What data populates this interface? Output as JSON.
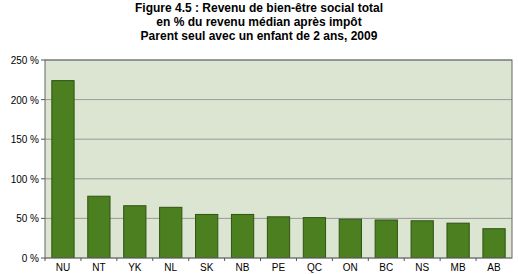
{
  "chart_data": {
    "type": "bar",
    "title": [
      "Figure 4.5 : Revenu de bien-être social total",
      "en % du revenu médian après impôt",
      "Parent seul avec un enfant de 2 ans, 2009"
    ],
    "categories": [
      "NU",
      "NT",
      "YK",
      "NL",
      "SK",
      "NB",
      "PE",
      "QC",
      "ON",
      "BC",
      "NS",
      "MB",
      "AB"
    ],
    "values": [
      224,
      78,
      66,
      64,
      55,
      55,
      52,
      51,
      49,
      48,
      47,
      44,
      37
    ],
    "color": "#4b7f1f",
    "ylim": [
      0,
      250
    ],
    "yticks": [
      {
        "value": 0,
        "label": "0 %"
      },
      {
        "value": 50,
        "label": "50 %"
      },
      {
        "value": 100,
        "label": "100 %"
      },
      {
        "value": 150,
        "label": "150 %"
      },
      {
        "value": 200,
        "label": "200 %"
      },
      {
        "value": 250,
        "label": "250 %"
      }
    ],
    "grid": true
  }
}
